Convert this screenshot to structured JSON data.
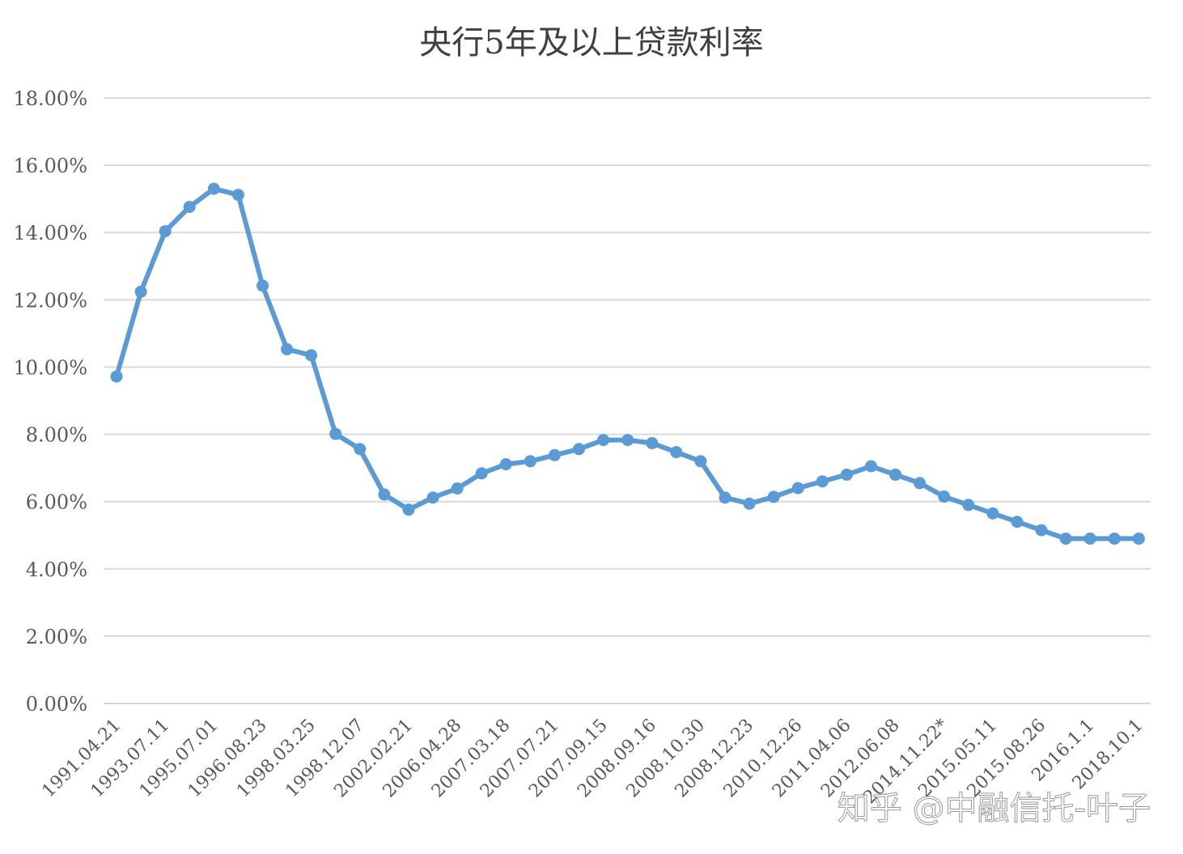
{
  "chart_data": {
    "type": "line",
    "title": "央行5年及以上贷款利率",
    "xlabel": "",
    "ylabel": "",
    "ylim": [
      0,
      18
    ],
    "ytick_labels": [
      "0.00%",
      "2.00%",
      "4.00%",
      "6.00%",
      "8.00%",
      "10.00%",
      "12.00%",
      "14.00%",
      "16.00%",
      "18.00%"
    ],
    "grid": true,
    "legend": "none",
    "x_tick_labels": [
      "1991.04.21",
      "1993.07.11",
      "1995.07.01",
      "1996.08.23",
      "1998.03.25",
      "1998.12.07",
      "2002.02.21",
      "2006.04.28",
      "2007.03.18",
      "2007.07.21",
      "2007.09.15",
      "2008.09.16",
      "2008.10.30",
      "2008.12.23",
      "2010.12.26",
      "2011.04.06",
      "2012.06.08",
      "2014.11.22*",
      "2015.05.11",
      "2015.08.26",
      "2016.1.1",
      "2018.10.1"
    ],
    "series": [
      {
        "color": "#5b9bd5",
        "values": [
          9.72,
          12.24,
          14.04,
          14.76,
          15.3,
          15.12,
          12.42,
          10.53,
          10.35,
          8.01,
          7.56,
          6.21,
          5.76,
          6.12,
          6.39,
          6.84,
          7.11,
          7.2,
          7.38,
          7.56,
          7.83,
          7.83,
          7.74,
          7.47,
          7.2,
          6.12,
          5.94,
          6.14,
          6.4,
          6.6,
          6.8,
          7.05,
          6.8,
          6.55,
          6.15,
          5.9,
          5.65,
          5.4,
          5.15,
          4.9,
          4.9,
          4.9,
          4.9
        ]
      }
    ]
  },
  "watermark": "知乎 @中融信托-叶子"
}
